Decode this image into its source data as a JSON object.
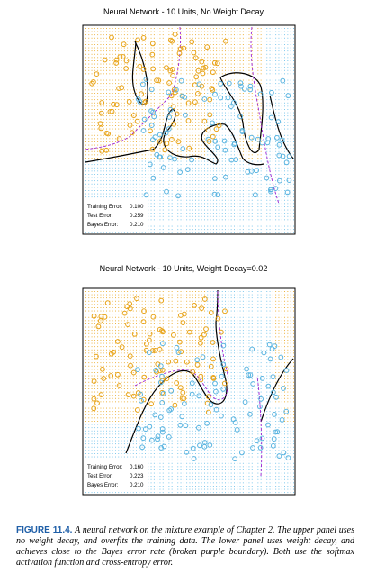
{
  "chart_data": [
    {
      "type": "scatter",
      "title": "Neural Network - 10 Units, No Weight Decay",
      "classes": [
        "orange",
        "blue"
      ],
      "colors": {
        "orange": "#e8a317",
        "blue": "#5ab4e0",
        "grid_orange": "#e8a317",
        "grid_blue": "#66bde8",
        "nn_boundary": "#000000",
        "bayes_boundary": "#9b1fd0"
      },
      "stats": [
        {
          "label": "Training Error:",
          "value": "0.100"
        },
        {
          "label": "Test Error:",
          "value": "0.259"
        },
        {
          "label": "Bayes Error:",
          "value": "0.210"
        }
      ],
      "boundary_style": {
        "nn": "solid",
        "bayes": "dashed"
      },
      "grid": true
    },
    {
      "type": "scatter",
      "title": "Neural Network - 10 Units, Weight Decay=0.02",
      "classes": [
        "orange",
        "blue"
      ],
      "colors": {
        "orange": "#e8a317",
        "blue": "#5ab4e0",
        "grid_orange": "#e8a317",
        "grid_blue": "#66bde8",
        "nn_boundary": "#000000",
        "bayes_boundary": "#9b1fd0"
      },
      "stats": [
        {
          "label": "Training Error:",
          "value": "0.160"
        },
        {
          "label": "Test Error:",
          "value": "0.223"
        },
        {
          "label": "Bayes Error:",
          "value": "0.210"
        }
      ],
      "boundary_style": {
        "nn": "solid",
        "bayes": "dashed"
      },
      "grid": true
    }
  ],
  "caption": {
    "label": "FIGURE 11.4.",
    "text": "A neural network on the mixture example of Chapter 2. The upper panel uses no weight decay, and overfits the training data. The lower panel uses weight decay, and achieves close to the Bayes error rate (broken purple boundary). Both use the softmax activation function and cross-entropy error."
  }
}
